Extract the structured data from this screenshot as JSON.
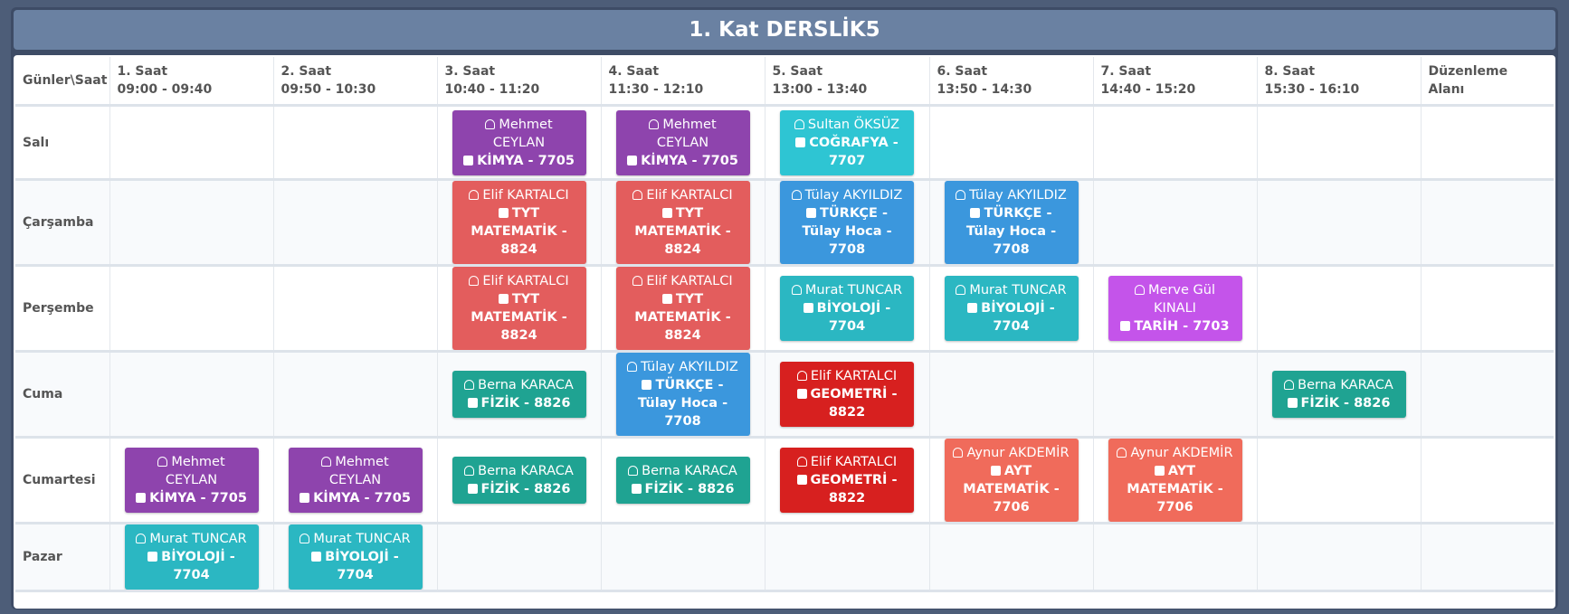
{
  "header": {
    "title": "1. Kat DERSLİK5"
  },
  "table": {
    "corner": "Günler\\Saat",
    "columns": [
      {
        "label": "1. Saat",
        "time": "09:00 - 09:40"
      },
      {
        "label": "2. Saat",
        "time": "09:50 - 10:30"
      },
      {
        "label": "3. Saat",
        "time": "10:40 - 11:20"
      },
      {
        "label": "4. Saat",
        "time": "11:30 - 12:10"
      },
      {
        "label": "5. Saat",
        "time": "13:00 - 13:40"
      },
      {
        "label": "6. Saat",
        "time": "13:50 - 14:30"
      },
      {
        "label": "7. Saat",
        "time": "14:40 - 15:20"
      },
      {
        "label": "8. Saat",
        "time": "15:30 - 16:10"
      }
    ],
    "edit_column": "Düzenleme Alanı",
    "rows": [
      {
        "day": "Salı",
        "cells": [
          null,
          null,
          {
            "teacher": "Mehmet CEYLAN",
            "course": "KİMYA - 7705",
            "color": "#8e44ad"
          },
          {
            "teacher": "Mehmet CEYLAN",
            "course": "KİMYA - 7705",
            "color": "#8e44ad"
          },
          {
            "teacher": "Sultan ÖKSÜZ",
            "course": "COĞRAFYA - 7707",
            "color": "#2ec5d3"
          },
          null,
          null,
          null
        ]
      },
      {
        "day": "Çarşamba",
        "cells": [
          null,
          null,
          {
            "teacher": "Elif KARTALCI",
            "course": "TYT MATEMATİK - 8824",
            "color": "#e35d5d"
          },
          {
            "teacher": "Elif KARTALCI",
            "course": "TYT MATEMATİK - 8824",
            "color": "#e35d5d"
          },
          {
            "teacher": "Tülay AKYILDIZ",
            "course": "TÜRKÇE - Tülay Hoca - 7708",
            "color": "#3b97dd"
          },
          {
            "teacher": "Tülay AKYILDIZ",
            "course": "TÜRKÇE - Tülay Hoca - 7708",
            "color": "#3b97dd"
          },
          null,
          null
        ]
      },
      {
        "day": "Perşembe",
        "cells": [
          null,
          null,
          {
            "teacher": "Elif KARTALCI",
            "course": "TYT MATEMATİK - 8824",
            "color": "#e35d5d"
          },
          {
            "teacher": "Elif KARTALCI",
            "course": "TYT MATEMATİK - 8824",
            "color": "#e35d5d"
          },
          {
            "teacher": "Murat TUNCAR",
            "course": "BİYOLOJİ - 7704",
            "color": "#2bb7c2"
          },
          {
            "teacher": "Murat TUNCAR",
            "course": "BİYOLOJİ - 7704",
            "color": "#2bb7c2"
          },
          {
            "teacher": "Merve Gül KINALI",
            "course": "TARİH - 7703",
            "color": "#c454ea"
          },
          null
        ]
      },
      {
        "day": "Cuma",
        "cells": [
          null,
          null,
          {
            "teacher": "Berna KARACA",
            "course": "FİZİK - 8826",
            "color": "#1fa392"
          },
          {
            "teacher": "Tülay AKYILDIZ",
            "course": "TÜRKÇE - Tülay Hoca - 7708",
            "color": "#3b97dd"
          },
          {
            "teacher": "Elif KARTALCI",
            "course": "GEOMETRİ - 8822",
            "color": "#d7201f"
          },
          null,
          null,
          {
            "teacher": "Berna KARACA",
            "course": "FİZİK - 8826",
            "color": "#1fa392"
          }
        ]
      },
      {
        "day": "Cumartesi",
        "cells": [
          {
            "teacher": "Mehmet CEYLAN",
            "course": "KİMYA - 7705",
            "color": "#8e44ad"
          },
          {
            "teacher": "Mehmet CEYLAN",
            "course": "KİMYA - 7705",
            "color": "#8e44ad"
          },
          {
            "teacher": "Berna KARACA",
            "course": "FİZİK - 8826",
            "color": "#1fa392"
          },
          {
            "teacher": "Berna KARACA",
            "course": "FİZİK - 8826",
            "color": "#1fa392"
          },
          {
            "teacher": "Elif KARTALCI",
            "course": "GEOMETRİ - 8822",
            "color": "#d7201f"
          },
          {
            "teacher": "Aynur AKDEMİR",
            "course": "AYT MATEMATİK - 7706",
            "color": "#f06b5b"
          },
          {
            "teacher": "Aynur AKDEMİR",
            "course": "AYT MATEMATİK - 7706",
            "color": "#f06b5b"
          },
          null
        ]
      },
      {
        "day": "Pazar",
        "cells": [
          {
            "teacher": "Murat TUNCAR",
            "course": "BİYOLOJİ - 7704",
            "color": "#2bb7c2"
          },
          {
            "teacher": "Murat TUNCAR",
            "course": "BİYOLOJİ - 7704",
            "color": "#2bb7c2"
          },
          null,
          null,
          null,
          null,
          null,
          null
        ]
      }
    ]
  }
}
